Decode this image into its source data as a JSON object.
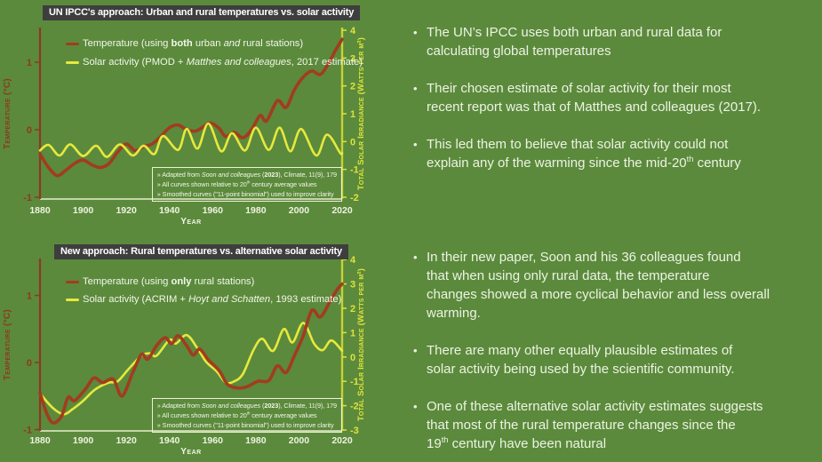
{
  "ui": {
    "bullet": "•",
    "background": "#5b8a3c",
    "title_bar_color": "#3e3e3e",
    "text_color": "#edf3e3"
  },
  "chart_data": [
    {
      "type": "line",
      "title": "UN IPCC's approach: Urban and rural temperatures vs. solar activity",
      "xlabel": "Year",
      "x_range": [
        1880,
        2020
      ],
      "x_ticks": [
        1880,
        1900,
        1920,
        1940,
        1960,
        1980,
        2000,
        2020
      ],
      "left_axis": {
        "label": "Temperature (°C)",
        "ticks": [
          1,
          0,
          -1
        ],
        "range": [
          -1,
          1.5
        ],
        "color": "#8c3a20"
      },
      "right_axis": {
        "label": "Total Solar Irradiance (Watts per m²)",
        "ticks": [
          4,
          3,
          2,
          1,
          0,
          -1,
          -2
        ],
        "range": [
          -2,
          4
        ],
        "color": "#dfe33a",
        "line_color": "#c6d334"
      },
      "bottom_axis_color": "#e7eecb",
      "legend": [
        {
          "segs": [
            {
              "t": "Temperature  (using "
            },
            {
              "t": "both",
              "s": "b"
            },
            {
              "t": " urban "
            },
            {
              "t": "and",
              "s": "i"
            },
            {
              "t": " rural stations)"
            }
          ]
        },
        {
          "segs": [
            {
              "t": "Solar activity  (PMOD + "
            },
            {
              "t": "Matthes and colleagues",
              "s": "i"
            },
            {
              "t": ", 2017 estimate)"
            }
          ]
        }
      ],
      "annotation": [
        [
          {
            "t": "» Adapted from "
          },
          {
            "t": "Soon and colleagues",
            "s": "i"
          },
          {
            "t": " ("
          },
          {
            "t": "2023",
            "s": "b"
          },
          {
            "t": "), Climate, 11(9), 179"
          }
        ],
        [
          {
            "t": "» All curves shown relative to 20"
          },
          {
            "t": "th",
            "s": "sup"
          },
          {
            "t": " century average values"
          }
        ],
        [
          {
            "t": "» Smoothed curves (\"11-point binomial\") used to improve clarity"
          }
        ]
      ],
      "series": [
        {
          "name": "Temperature (using both urban and rural stations)",
          "axis": "left",
          "unit": "°C",
          "color": "#a23c1e",
          "points": [
            [
              1880,
              -0.36
            ],
            [
              1884,
              -0.56
            ],
            [
              1888,
              -0.68
            ],
            [
              1892,
              -0.6
            ],
            [
              1896,
              -0.5
            ],
            [
              1900,
              -0.45
            ],
            [
              1904,
              -0.52
            ],
            [
              1908,
              -0.56
            ],
            [
              1912,
              -0.5
            ],
            [
              1916,
              -0.33
            ],
            [
              1920,
              -0.21
            ],
            [
              1924,
              -0.31
            ],
            [
              1928,
              -0.25
            ],
            [
              1932,
              -0.21
            ],
            [
              1936,
              -0.1
            ],
            [
              1940,
              0.03
            ],
            [
              1944,
              0.07
            ],
            [
              1948,
              0.0
            ],
            [
              1952,
              -0.02
            ],
            [
              1956,
              0.05
            ],
            [
              1959,
              0.1
            ],
            [
              1963,
              0.02
            ],
            [
              1966,
              -0.1
            ],
            [
              1970,
              -0.04
            ],
            [
              1974,
              -0.12
            ],
            [
              1978,
              0.0
            ],
            [
              1982,
              0.21
            ],
            [
              1985,
              0.13
            ],
            [
              1990,
              0.43
            ],
            [
              1994,
              0.33
            ],
            [
              1998,
              0.6
            ],
            [
              2002,
              0.78
            ],
            [
              2006,
              0.87
            ],
            [
              2010,
              0.82
            ],
            [
              2014,
              1.0
            ],
            [
              2017,
              1.18
            ],
            [
              2020,
              1.34
            ]
          ]
        },
        {
          "name": "Solar activity (PMOD + Matthes and colleagues, 2017 estimate)",
          "axis": "right",
          "unit": "W/m²",
          "color": "#e6e93c",
          "points": [
            [
              1880,
              -0.32
            ],
            [
              1884,
              -0.12
            ],
            [
              1889,
              -0.5
            ],
            [
              1894,
              -0.1
            ],
            [
              1900,
              -0.52
            ],
            [
              1906,
              -0.15
            ],
            [
              1911,
              -0.55
            ],
            [
              1917,
              -0.1
            ],
            [
              1923,
              -0.5
            ],
            [
              1928,
              -0.15
            ],
            [
              1933,
              -0.45
            ],
            [
              1937,
              0.2
            ],
            [
              1944,
              -0.3
            ],
            [
              1948,
              0.45
            ],
            [
              1953,
              -0.25
            ],
            [
              1958,
              0.65
            ],
            [
              1964,
              -0.35
            ],
            [
              1969,
              0.3
            ],
            [
              1975,
              -0.32
            ],
            [
              1980,
              0.5
            ],
            [
              1986,
              -0.3
            ],
            [
              1991,
              0.5
            ],
            [
              1996,
              -0.35
            ],
            [
              2001,
              0.45
            ],
            [
              2008,
              -0.5
            ],
            [
              2013,
              0.25
            ],
            [
              2019,
              -0.4
            ],
            [
              2020,
              -0.42
            ]
          ]
        }
      ]
    },
    {
      "type": "line",
      "title": "New approach: Rural temperatures vs. alternative solar activity",
      "xlabel": "Year",
      "x_range": [
        1880,
        2020
      ],
      "x_ticks": [
        1880,
        1900,
        1920,
        1940,
        1960,
        1980,
        2000,
        2020
      ],
      "left_axis": {
        "label": "Temperature (°C)",
        "ticks": [
          1,
          0,
          -1
        ],
        "range": [
          -1,
          1.5
        ],
        "color": "#8c3a20"
      },
      "right_axis": {
        "label": "Total Solar Irradiance (Watts per m²)",
        "ticks": [
          4,
          3,
          2,
          1,
          0,
          -1,
          -2,
          -3
        ],
        "range": [
          -3,
          4
        ],
        "color": "#dfe33a",
        "line_color": "#c6d334"
      },
      "bottom_axis_color": "#e7eecb",
      "legend": [
        {
          "segs": [
            {
              "t": "Temperature  (using "
            },
            {
              "t": "only",
              "s": "b"
            },
            {
              "t": " rural stations)"
            }
          ]
        },
        {
          "segs": [
            {
              "t": "Solar activity  (ACRIM + "
            },
            {
              "t": "Hoyt and Schatten",
              "s": "i"
            },
            {
              "t": ", 1993 estimate)"
            }
          ]
        }
      ],
      "annotation": [
        [
          {
            "t": "» Adapted from "
          },
          {
            "t": "Soon and colleagues",
            "s": "i"
          },
          {
            "t": " ("
          },
          {
            "t": "2023",
            "s": "b"
          },
          {
            "t": "), Climate, 11(9), 179"
          }
        ],
        [
          {
            "t": "» All curves shown relative to 20"
          },
          {
            "t": "th",
            "s": "sup"
          },
          {
            "t": " century average values"
          }
        ],
        [
          {
            "t": "» Smoothed curves (\"11-point binomial\") used to improve clarity"
          }
        ]
      ],
      "series": [
        {
          "name": "Temperature (using only rural stations)",
          "axis": "left",
          "unit": "°C",
          "color": "#a23c1e",
          "points": [
            [
              1880,
              -0.45
            ],
            [
              1883,
              -0.75
            ],
            [
              1886,
              -0.9
            ],
            [
              1890,
              -0.8
            ],
            [
              1893,
              -0.52
            ],
            [
              1896,
              -0.57
            ],
            [
              1901,
              -0.4
            ],
            [
              1905,
              -0.23
            ],
            [
              1909,
              -0.3
            ],
            [
              1914,
              -0.25
            ],
            [
              1918,
              -0.5
            ],
            [
              1923,
              -0.15
            ],
            [
              1927,
              0.12
            ],
            [
              1930,
              0.05
            ],
            [
              1934,
              0.25
            ],
            [
              1938,
              0.37
            ],
            [
              1941,
              0.28
            ],
            [
              1944,
              0.4
            ],
            [
              1948,
              0.25
            ],
            [
              1951,
              0.11
            ],
            [
              1954,
              0.2
            ],
            [
              1958,
              0.04
            ],
            [
              1963,
              -0.12
            ],
            [
              1967,
              -0.33
            ],
            [
              1972,
              -0.38
            ],
            [
              1976,
              -0.36
            ],
            [
              1981,
              -0.28
            ],
            [
              1986,
              -0.27
            ],
            [
              1990,
              -0.05
            ],
            [
              1994,
              -0.15
            ],
            [
              1998,
              0.11
            ],
            [
              2002,
              0.4
            ],
            [
              2006,
              0.78
            ],
            [
              2010,
              0.68
            ],
            [
              2015,
              0.95
            ],
            [
              2018,
              1.1
            ],
            [
              2020,
              1.17
            ]
          ]
        },
        {
          "name": "Solar activity (ACRIM + Hoyt and Schatten, 1993 estimate)",
          "axis": "right",
          "unit": "W/m²",
          "color": "#e6e93c",
          "points": [
            [
              1880,
              -1.5
            ],
            [
              1886,
              -2.1
            ],
            [
              1891,
              -2.35
            ],
            [
              1895,
              -2.15
            ],
            [
              1900,
              -1.8
            ],
            [
              1904,
              -1.45
            ],
            [
              1907,
              -1.25
            ],
            [
              1912,
              -1.05
            ],
            [
              1916,
              -1.0
            ],
            [
              1921,
              -0.5
            ],
            [
              1927,
              0.05
            ],
            [
              1931,
              0.15
            ],
            [
              1934,
              0.05
            ],
            [
              1940,
              0.7
            ],
            [
              1943,
              0.55
            ],
            [
              1948,
              0.9
            ],
            [
              1953,
              0.35
            ],
            [
              1957,
              -0.2
            ],
            [
              1962,
              -0.6
            ],
            [
              1966,
              -1.05
            ],
            [
              1970,
              -1.0
            ],
            [
              1974,
              -0.7
            ],
            [
              1979,
              0.3
            ],
            [
              1983,
              0.75
            ],
            [
              1988,
              0.25
            ],
            [
              1993,
              1.15
            ],
            [
              1997,
              0.6
            ],
            [
              2002,
              1.4
            ],
            [
              2007,
              0.55
            ],
            [
              2011,
              0.28
            ],
            [
              2015,
              0.68
            ],
            [
              2020,
              0.25
            ]
          ]
        }
      ]
    }
  ],
  "right_column": {
    "blocks": [
      {
        "bullets": [
          {
            "segs": [
              {
                "t": "The UN’s IPCC uses both urban and rural data for\ncalculating global temperatures"
              }
            ]
          },
          {
            "segs": [
              {
                "t": "Their chosen estimate of solar activity for their most\nrecent report was that of Matthes and colleagues (2017)."
              }
            ]
          },
          {
            "segs": [
              {
                "t": "This led them to believe that solar activity could not\nexplain any of the warming since the mid-20"
              },
              {
                "t": "th",
                "s": "sup"
              },
              {
                "t": " century"
              }
            ]
          }
        ]
      },
      {
        "bullets": [
          {
            "segs": [
              {
                "t": "In their new paper, Soon and his 36 colleagues found\nthat when using only rural data, the temperature\nchanges showed a more cyclical behavior and less overall\nwarming."
              }
            ]
          },
          {
            "segs": [
              {
                "t": "There are many other equally plausible estimates of\nsolar activity being used by the scientific community."
              }
            ]
          },
          {
            "segs": [
              {
                "t": "One of these alternative solar activity estimates suggests\nthat most of the rural temperature changes since the\n19"
              },
              {
                "t": "th",
                "s": "sup"
              },
              {
                "t": " century have been natural"
              }
            ]
          }
        ]
      }
    ]
  }
}
